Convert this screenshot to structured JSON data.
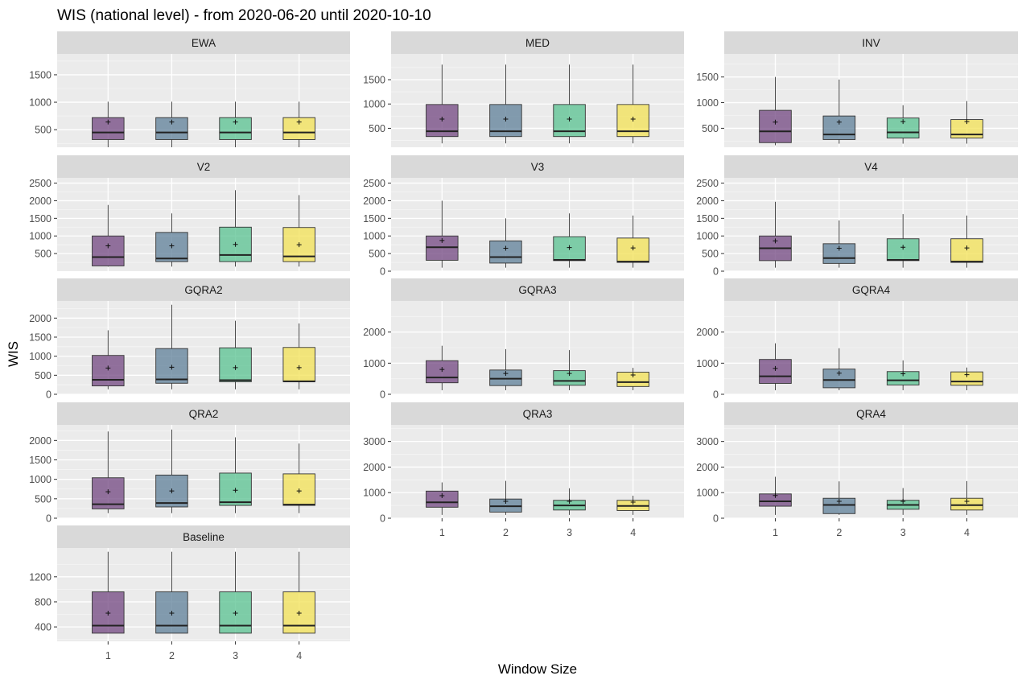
{
  "chart_data": {
    "type": "boxplot",
    "title": "WIS (national level) - from 2020-06-20 until 2020-10-10",
    "xlabel": "Window Size",
    "ylabel": "WIS",
    "categories": [
      "1",
      "2",
      "3",
      "4"
    ],
    "fill_colors": [
      "#6c3f7c",
      "#587a94",
      "#52bf8c",
      "#f2e14e"
    ],
    "panels": [
      {
        "name": "EWA",
        "ylim": [
          180,
          1880
        ],
        "ticks": [
          500,
          1000,
          1500
        ],
        "boxes": [
          {
            "lower": 180,
            "q1": 320,
            "median": 450,
            "q3": 720,
            "upper": 1010,
            "mean": 640
          },
          {
            "lower": 180,
            "q1": 320,
            "median": 450,
            "q3": 720,
            "upper": 1010,
            "mean": 640
          },
          {
            "lower": 180,
            "q1": 320,
            "median": 450,
            "q3": 720,
            "upper": 1010,
            "mean": 640
          },
          {
            "lower": 180,
            "q1": 320,
            "median": 450,
            "q3": 720,
            "upper": 1010,
            "mean": 640
          }
        ]
      },
      {
        "name": "MED",
        "ylim": [
          110,
          2030
        ],
        "ticks": [
          500,
          1000,
          1500
        ],
        "boxes": [
          {
            "lower": 190,
            "q1": 330,
            "median": 440,
            "q3": 990,
            "upper": 1810,
            "mean": 690
          },
          {
            "lower": 190,
            "q1": 330,
            "median": 440,
            "q3": 990,
            "upper": 1810,
            "mean": 690
          },
          {
            "lower": 190,
            "q1": 330,
            "median": 440,
            "q3": 990,
            "upper": 1810,
            "mean": 690
          },
          {
            "lower": 190,
            "q1": 330,
            "median": 440,
            "q3": 990,
            "upper": 1810,
            "mean": 690
          }
        ]
      },
      {
        "name": "INV",
        "ylim": [
          130,
          1950
        ],
        "ticks": [
          500,
          1000,
          1500
        ],
        "boxes": [
          {
            "lower": 170,
            "q1": 220,
            "median": 440,
            "q3": 850,
            "upper": 1500,
            "mean": 620
          },
          {
            "lower": 200,
            "q1": 280,
            "median": 380,
            "q3": 740,
            "upper": 1450,
            "mean": 620
          },
          {
            "lower": 200,
            "q1": 310,
            "median": 420,
            "q3": 700,
            "upper": 950,
            "mean": 630
          },
          {
            "lower": 200,
            "q1": 310,
            "median": 380,
            "q3": 670,
            "upper": 1030,
            "mean": 630
          }
        ]
      },
      {
        "name": "V2",
        "ylim": [
          0,
          2650
        ],
        "ticks": [
          500,
          1000,
          1500,
          2000,
          2500
        ],
        "boxes": [
          {
            "lower": 130,
            "q1": 150,
            "median": 400,
            "q3": 1000,
            "upper": 1880,
            "mean": 720
          },
          {
            "lower": 130,
            "q1": 270,
            "median": 360,
            "q3": 1100,
            "upper": 1640,
            "mean": 720
          },
          {
            "lower": 130,
            "q1": 270,
            "median": 460,
            "q3": 1250,
            "upper": 2300,
            "mean": 760
          },
          {
            "lower": 130,
            "q1": 270,
            "median": 420,
            "q3": 1240,
            "upper": 2160,
            "mean": 750
          }
        ]
      },
      {
        "name": "V3",
        "ylim": [
          0,
          2650
        ],
        "ticks": [
          0,
          500,
          1000,
          1500,
          2000,
          2500
        ],
        "boxes": [
          {
            "lower": 100,
            "q1": 310,
            "median": 680,
            "q3": 1000,
            "upper": 2000,
            "mean": 870
          },
          {
            "lower": 100,
            "q1": 230,
            "median": 400,
            "q3": 860,
            "upper": 1500,
            "mean": 650
          },
          {
            "lower": 100,
            "q1": 300,
            "median": 320,
            "q3": 980,
            "upper": 1640,
            "mean": 670
          },
          {
            "lower": 100,
            "q1": 250,
            "median": 270,
            "q3": 940,
            "upper": 1580,
            "mean": 660
          }
        ]
      },
      {
        "name": "V4",
        "ylim": [
          0,
          2650
        ],
        "ticks": [
          0,
          500,
          1000,
          1500,
          2000,
          2500
        ],
        "boxes": [
          {
            "lower": 100,
            "q1": 300,
            "median": 650,
            "q3": 1000,
            "upper": 1970,
            "mean": 860
          },
          {
            "lower": 100,
            "q1": 220,
            "median": 370,
            "q3": 780,
            "upper": 1440,
            "mean": 650
          },
          {
            "lower": 100,
            "q1": 300,
            "median": 320,
            "q3": 920,
            "upper": 1620,
            "mean": 680
          },
          {
            "lower": 100,
            "q1": 250,
            "median": 270,
            "q3": 920,
            "upper": 1580,
            "mean": 660
          }
        ]
      },
      {
        "name": "GQRA2",
        "ylim": [
          0,
          2450
        ],
        "ticks": [
          0,
          500,
          1000,
          1500,
          2000
        ],
        "boxes": [
          {
            "lower": 130,
            "q1": 220,
            "median": 380,
            "q3": 1020,
            "upper": 1680,
            "mean": 690
          },
          {
            "lower": 130,
            "q1": 290,
            "median": 390,
            "q3": 1200,
            "upper": 2350,
            "mean": 710
          },
          {
            "lower": 130,
            "q1": 330,
            "median": 370,
            "q3": 1220,
            "upper": 1930,
            "mean": 700
          },
          {
            "lower": 130,
            "q1": 330,
            "median": 340,
            "q3": 1230,
            "upper": 1860,
            "mean": 700
          }
        ]
      },
      {
        "name": "GQRA3",
        "ylim": [
          0,
          3000
        ],
        "ticks": [
          0,
          1000,
          2000
        ],
        "boxes": [
          {
            "lower": 130,
            "q1": 370,
            "median": 540,
            "q3": 1080,
            "upper": 1560,
            "mean": 800
          },
          {
            "lower": 130,
            "q1": 280,
            "median": 500,
            "q3": 780,
            "upper": 1450,
            "mean": 670
          },
          {
            "lower": 130,
            "q1": 290,
            "median": 430,
            "q3": 760,
            "upper": 1420,
            "mean": 670
          },
          {
            "lower": 130,
            "q1": 250,
            "median": 390,
            "q3": 710,
            "upper": 850,
            "mean": 620
          }
        ]
      },
      {
        "name": "GQRA4",
        "ylim": [
          0,
          3000
        ],
        "ticks": [
          0,
          1000,
          2000
        ],
        "boxes": [
          {
            "lower": 130,
            "q1": 350,
            "median": 580,
            "q3": 1120,
            "upper": 1640,
            "mean": 830
          },
          {
            "lower": 130,
            "q1": 210,
            "median": 460,
            "q3": 810,
            "upper": 1480,
            "mean": 680
          },
          {
            "lower": 130,
            "q1": 300,
            "median": 450,
            "q3": 730,
            "upper": 1090,
            "mean": 660
          },
          {
            "lower": 130,
            "q1": 290,
            "median": 410,
            "q3": 720,
            "upper": 860,
            "mean": 630
          }
        ]
      },
      {
        "name": "QRA2",
        "ylim": [
          0,
          2400
        ],
        "ticks": [
          0,
          500,
          1000,
          1500,
          2000
        ],
        "boxes": [
          {
            "lower": 130,
            "q1": 240,
            "median": 360,
            "q3": 1040,
            "upper": 2230,
            "mean": 680
          },
          {
            "lower": 130,
            "q1": 290,
            "median": 390,
            "q3": 1110,
            "upper": 2280,
            "mean": 700
          },
          {
            "lower": 130,
            "q1": 330,
            "median": 410,
            "q3": 1160,
            "upper": 2080,
            "mean": 720
          },
          {
            "lower": 130,
            "q1": 330,
            "median": 350,
            "q3": 1140,
            "upper": 1920,
            "mean": 700
          }
        ]
      },
      {
        "name": "QRA3",
        "ylim": [
          0,
          3650
        ],
        "ticks": [
          0,
          1000,
          2000,
          3000
        ],
        "boxes": [
          {
            "lower": 130,
            "q1": 430,
            "median": 620,
            "q3": 1060,
            "upper": 1400,
            "mean": 880
          },
          {
            "lower": 130,
            "q1": 240,
            "median": 470,
            "q3": 750,
            "upper": 1460,
            "mean": 660
          },
          {
            "lower": 130,
            "q1": 320,
            "median": 500,
            "q3": 700,
            "upper": 1170,
            "mean": 660
          },
          {
            "lower": 130,
            "q1": 300,
            "median": 480,
            "q3": 700,
            "upper": 880,
            "mean": 630
          }
        ]
      },
      {
        "name": "QRA4",
        "ylim": [
          0,
          3650
        ],
        "ticks": [
          0,
          1000,
          2000,
          3000
        ],
        "boxes": [
          {
            "lower": 130,
            "q1": 470,
            "median": 660,
            "q3": 950,
            "upper": 1620,
            "mean": 890
          },
          {
            "lower": 130,
            "q1": 180,
            "median": 520,
            "q3": 780,
            "upper": 1440,
            "mean": 660
          },
          {
            "lower": 130,
            "q1": 350,
            "median": 520,
            "q3": 700,
            "upper": 1180,
            "mean": 660
          },
          {
            "lower": 130,
            "q1": 320,
            "median": 510,
            "q3": 780,
            "upper": 1450,
            "mean": 660
          }
        ]
      },
      {
        "name": "Baseline",
        "ylim": [
          170,
          1660
        ],
        "ticks": [
          400,
          800,
          1200
        ],
        "boxes": [
          {
            "lower": 300,
            "q1": 300,
            "median": 420,
            "q3": 960,
            "upper": 1600,
            "mean": 620
          },
          {
            "lower": 300,
            "q1": 300,
            "median": 420,
            "q3": 960,
            "upper": 1600,
            "mean": 620
          },
          {
            "lower": 300,
            "q1": 300,
            "median": 420,
            "q3": 960,
            "upper": 1600,
            "mean": 620
          },
          {
            "lower": 300,
            "q1": 300,
            "median": 420,
            "q3": 960,
            "upper": 1600,
            "mean": 620
          }
        ]
      }
    ]
  }
}
